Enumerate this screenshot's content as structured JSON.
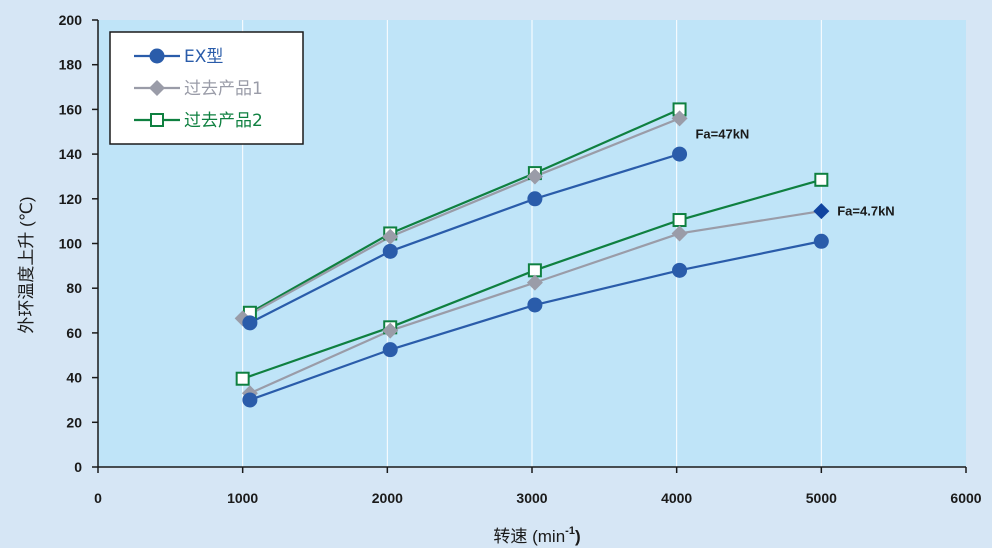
{
  "chart_data": {
    "type": "line",
    "xlabel_main": "转速 (min",
    "xlabel_sup": "-1",
    "xlabel_close": ")",
    "ylabel": "外环温度上升 (℃)",
    "xlim": [
      0,
      6000
    ],
    "ylim": [
      0,
      200
    ],
    "x_ticks": [
      "0",
      "1000",
      "2000",
      "3000",
      "4000",
      "5000",
      "6000"
    ],
    "y_ticks": [
      "0",
      "20",
      "40",
      "60",
      "80",
      "100",
      "120",
      "140",
      "160",
      "180",
      "200"
    ],
    "grid": {
      "vertical": true,
      "horizontal": false
    },
    "legend_position": "top-left",
    "legend": [
      {
        "label": "EX型",
        "marker": "circle",
        "color": "#2a5caa"
      },
      {
        "label": "过去产品1",
        "marker": "diamond",
        "color": "#9a9ca8"
      },
      {
        "label": "过去产品2",
        "marker": "square",
        "color": "#0f8040"
      }
    ],
    "groups": [
      {
        "annotation": "Fa=47kN",
        "series": [
          {
            "marker": "circle",
            "color": "#2a5caa",
            "x": [
              1050,
              2020,
              3020,
              4020
            ],
            "y": [
              64.5,
              96.5,
              120,
              140
            ]
          },
          {
            "marker": "diamond",
            "color": "#9a9ca8",
            "x": [
              1000,
              2020,
              3020,
              4020
            ],
            "y": [
              66.5,
              103,
              130,
              156
            ]
          },
          {
            "marker": "square",
            "color": "#0f8040",
            "x": [
              1050,
              2020,
              3020,
              4020
            ],
            "y": [
              69,
              104.5,
              131.5,
              160
            ]
          }
        ]
      },
      {
        "annotation": "Fa=4.7kN",
        "series": [
          {
            "marker": "circle",
            "color": "#2a5caa",
            "x": [
              1050,
              2020,
              3020,
              4020,
              5000
            ],
            "y": [
              30,
              52.5,
              72.5,
              88,
              101
            ]
          },
          {
            "marker": "diamond",
            "color": "#9a9ca8",
            "x": [
              1050,
              2020,
              3020,
              4020,
              5000
            ],
            "y": [
              33,
              61,
              82.5,
              104.5,
              114.5
            ]
          },
          {
            "marker": "square",
            "color": "#0f8040",
            "x": [
              1000,
              2020,
              3020,
              4020,
              5000
            ],
            "y": [
              39.5,
              62.5,
              88,
              110.5,
              128.5
            ]
          }
        ]
      }
    ],
    "colors": {
      "plot_bg": "#bfe4f8",
      "page_bg": "#d6e6f5",
      "grid": "#ffffff",
      "axis": "#1a1a1a",
      "fa_small_marker": "#1144a0"
    }
  }
}
